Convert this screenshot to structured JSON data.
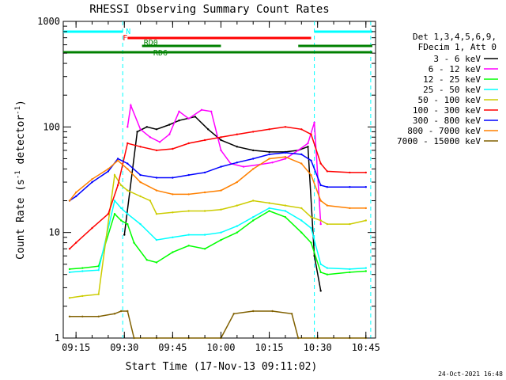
{
  "chart_data": {
    "type": "line",
    "title": "RHESSI Observing Summary Count Rates",
    "xlabel": "Start Time (17-Nov-13 09:11:02)",
    "ylabel": "Count Rate (s⁻¹ detector⁻¹)",
    "ylabel_base": "Count Rate (s",
    "ylabel_mid": " detector",
    "ylabel_end": ")",
    "ylabel_sup": "-1",
    "yscale": "log",
    "ylim": [
      1,
      1000
    ],
    "xlim": [
      "09:11:02",
      "10:48:00"
    ],
    "x_ticks": [
      "09:15",
      "09:30",
      "09:45",
      "10:00",
      "10:15",
      "10:30",
      "10:45"
    ],
    "y_ticks": [
      "1",
      "10",
      "100",
      "1000"
    ],
    "legend_position": "right",
    "legend_header": [
      "Det 1,3,4,5,6,9,",
      "FDecim 1, Att 0"
    ],
    "footer_date": "24-Oct-2021 16:48",
    "series": [
      {
        "name": "3 - 6 keV",
        "color": "#000000",
        "x": [
          "09:30",
          "09:34",
          "09:37",
          "09:40",
          "09:44",
          "09:47",
          "09:52",
          "09:56",
          "10:00",
          "10:05",
          "10:10",
          "10:15",
          "10:20",
          "10:24",
          "10:27",
          "10:29",
          "10:31"
        ],
        "y": [
          9.5,
          90,
          100,
          95,
          105,
          115,
          125,
          95,
          75,
          65,
          60,
          58,
          58,
          60,
          65,
          6,
          2.8
        ]
      },
      {
        "name": "6 - 12 keV",
        "color": "#ff00ff",
        "x": [
          "09:31",
          "09:32",
          "09:35",
          "09:38",
          "09:41",
          "09:44",
          "09:47",
          "09:50",
          "09:54",
          "09:57",
          "10:00",
          "10:03",
          "10:07",
          "10:12",
          "10:16",
          "10:20",
          "10:24",
          "10:27",
          "10:29",
          "10:31"
        ],
        "y": [
          100,
          160,
          95,
          80,
          72,
          85,
          140,
          120,
          145,
          140,
          60,
          45,
          42,
          44,
          46,
          50,
          60,
          70,
          110,
          12
        ]
      },
      {
        "name": "12 - 25 keV",
        "color": "#00ff00",
        "x": [
          "09:13",
          "09:17",
          "09:22",
          "09:27",
          "09:29",
          "09:31",
          "09:33",
          "09:37",
          "09:40",
          "09:45",
          "09:50",
          "09:55",
          "10:00",
          "10:05",
          "10:10",
          "10:15",
          "10:20",
          "10:25",
          "10:28",
          "10:31",
          "10:33",
          "10:40",
          "10:45"
        ],
        "y": [
          4.5,
          4.6,
          4.8,
          15,
          13,
          12,
          8,
          5.5,
          5.2,
          6.5,
          7.5,
          7,
          8.5,
          10,
          13,
          16,
          14,
          10,
          8,
          4.2,
          4.0,
          4.2,
          4.3
        ]
      },
      {
        "name": "25 - 50 keV",
        "color": "#00ffff",
        "x": [
          "09:13",
          "09:17",
          "09:22",
          "09:27",
          "09:29",
          "09:31",
          "09:35",
          "09:40",
          "09:45",
          "09:50",
          "09:55",
          "10:00",
          "10:05",
          "10:10",
          "10:15",
          "10:20",
          "10:25",
          "10:28",
          "10:31",
          "10:33",
          "10:40",
          "10:45"
        ],
        "y": [
          4.2,
          4.3,
          4.4,
          20,
          17,
          15,
          12,
          8.5,
          9,
          9.5,
          9.5,
          10,
          11.5,
          14,
          17,
          16,
          13,
          11,
          5,
          4.6,
          4.5,
          4.6
        ]
      },
      {
        "name": "50 - 100 keV",
        "color": "#cccc00",
        "x": [
          "09:13",
          "09:17",
          "09:22",
          "09:27",
          "09:29",
          "09:31",
          "09:35",
          "09:38",
          "09:40",
          "09:45",
          "09:50",
          "09:55",
          "10:00",
          "10:05",
          "10:10",
          "10:15",
          "10:20",
          "10:25",
          "10:28",
          "10:31",
          "10:33",
          "10:40",
          "10:45"
        ],
        "y": [
          2.4,
          2.5,
          2.6,
          35,
          28,
          25,
          22,
          20,
          15,
          15.5,
          16,
          16,
          16.5,
          18,
          20,
          19,
          18,
          17,
          14,
          13,
          12,
          12,
          13
        ]
      },
      {
        "name": "100 - 300 keV",
        "color": "#ff0000",
        "x": [
          "09:13",
          "09:15",
          "09:20",
          "09:25",
          "09:28",
          "09:31",
          "09:35",
          "09:40",
          "09:45",
          "09:50",
          "09:55",
          "10:00",
          "10:05",
          "10:10",
          "10:15",
          "10:20",
          "10:25",
          "10:28",
          "10:31",
          "10:33",
          "10:40",
          "10:45"
        ],
        "y": [
          7,
          8,
          11,
          15,
          28,
          70,
          65,
          60,
          62,
          70,
          75,
          80,
          85,
          90,
          95,
          100,
          95,
          85,
          45,
          38,
          37,
          37
        ]
      },
      {
        "name": "300 - 800 keV",
        "color": "#0000ff",
        "x": [
          "09:13",
          "09:15",
          "09:20",
          "09:25",
          "09:28",
          "09:31",
          "09:35",
          "09:40",
          "09:45",
          "09:50",
          "09:55",
          "10:00",
          "10:05",
          "10:10",
          "10:15",
          "10:20",
          "10:25",
          "10:28",
          "10:31",
          "10:33",
          "10:40",
          "10:45"
        ],
        "y": [
          20,
          22,
          30,
          38,
          50,
          45,
          35,
          33,
          33,
          35,
          37,
          42,
          46,
          50,
          55,
          57,
          55,
          48,
          28,
          27,
          27,
          27
        ]
      },
      {
        "name": "800 - 7000 keV",
        "color": "#ff8000",
        "x": [
          "09:13",
          "09:15",
          "09:20",
          "09:25",
          "09:28",
          "09:31",
          "09:35",
          "09:40",
          "09:45",
          "09:50",
          "09:55",
          "10:00",
          "10:05",
          "10:10",
          "10:15",
          "10:20",
          "10:25",
          "10:28",
          "10:31",
          "10:33",
          "10:40",
          "10:45"
        ],
        "y": [
          20,
          24,
          32,
          40,
          48,
          40,
          30,
          25,
          23,
          23,
          24,
          25,
          30,
          40,
          50,
          52,
          45,
          35,
          20,
          18,
          17,
          17
        ]
      },
      {
        "name": "7000 - 15000 keV",
        "color": "#806000",
        "x": [
          "09:13",
          "09:17",
          "09:22",
          "09:27",
          "09:29",
          "09:31",
          "09:33",
          "09:40",
          "09:50",
          "10:00",
          "10:04",
          "10:10",
          "10:16",
          "10:22",
          "10:24",
          "10:30",
          "10:40",
          "10:45"
        ],
        "y": [
          1.6,
          1.6,
          1.6,
          1.7,
          1.8,
          1.8,
          1,
          1,
          1,
          1,
          1.7,
          1.8,
          1.8,
          1.7,
          1,
          1,
          1,
          1
        ]
      }
    ],
    "flags": [
      {
        "name": "N",
        "color": "#00ffff",
        "segments": [
          [
            "09:11:02",
            "09:29:30"
          ],
          [
            "10:29:00",
            "10:47:00"
          ]
        ]
      },
      {
        "name": "F",
        "color": "#ff0000",
        "segments": [
          [
            "09:31:00",
            "10:28:00"
          ]
        ]
      },
      {
        "name": "RD0",
        "color": "#008000",
        "segments": [
          [
            "09:35:30",
            "10:00:00"
          ],
          [
            "10:24:00",
            "10:47:00"
          ]
        ]
      },
      {
        "name": "RD6",
        "color": "#008000",
        "segments": [
          [
            "09:11:02",
            "10:00:30"
          ],
          [
            "10:00:30",
            "10:47:00"
          ]
        ]
      }
    ],
    "vlines": [
      "09:29:30",
      "10:29:00",
      "10:46:30"
    ],
    "vline_colors": [
      "#00ffff",
      "#00ffff",
      "#00ffff"
    ]
  }
}
